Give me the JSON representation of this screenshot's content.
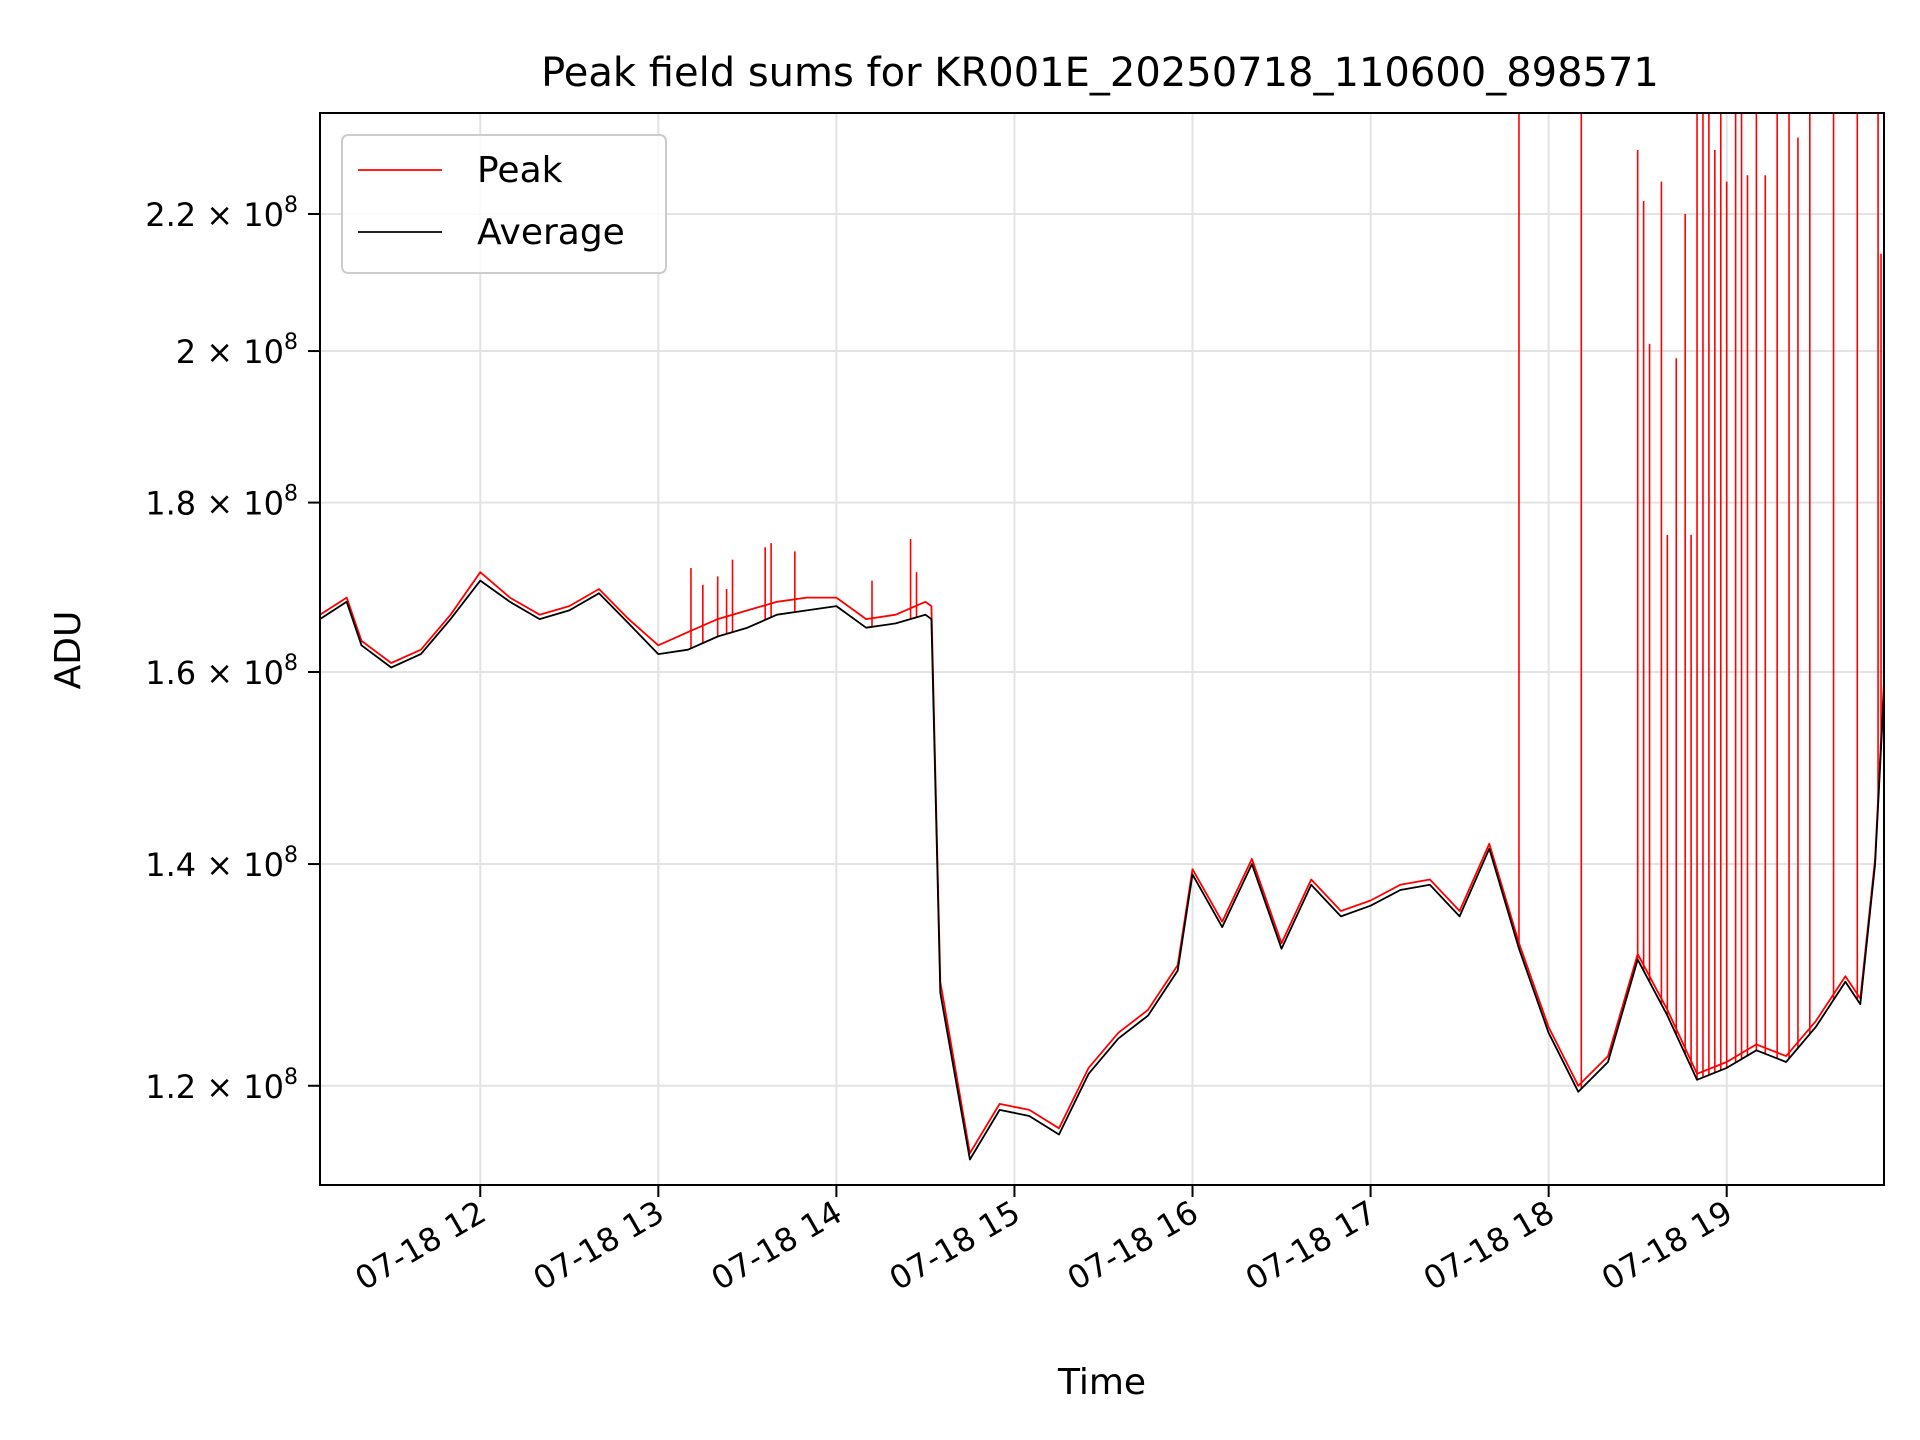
{
  "chart_data": {
    "type": "line",
    "title": "Peak field sums for KR001E_20250718_110600_898571",
    "xlabel": "Time",
    "ylabel": "ADU",
    "yscale": "log",
    "xlim": [
      "2025-07-18 11:06",
      "2025-07-18 19:53"
    ],
    "ylim": [
      112000000,
      236000000
    ],
    "grid": true,
    "legend": {
      "position": "top-left",
      "entries": [
        {
          "label": "Peak",
          "color": "#ff0000"
        },
        {
          "label": "Average",
          "color": "#000000"
        }
      ]
    },
    "x_ticks": [
      {
        "label": "07-18 12",
        "value": "2025-07-18 12:00"
      },
      {
        "label": "07-18 13",
        "value": "2025-07-18 13:00"
      },
      {
        "label": "07-18 14",
        "value": "2025-07-18 14:00"
      },
      {
        "label": "07-18 15",
        "value": "2025-07-18 15:00"
      },
      {
        "label": "07-18 16",
        "value": "2025-07-18 16:00"
      },
      {
        "label": "07-18 17",
        "value": "2025-07-18 17:00"
      },
      {
        "label": "07-18 18",
        "value": "2025-07-18 18:00"
      },
      {
        "label": "07-18 19",
        "value": "2025-07-18 19:00"
      }
    ],
    "y_ticks": [
      {
        "mantissa": "1.2",
        "exponent": "8",
        "value": 120000000
      },
      {
        "mantissa": "1.4",
        "exponent": "8",
        "value": 140000000
      },
      {
        "mantissa": "1.6",
        "exponent": "8",
        "value": 160000000
      },
      {
        "mantissa": "1.8",
        "exponent": "8",
        "value": 180000000
      },
      {
        "mantissa": "2",
        "exponent": "8",
        "value": 200000000
      },
      {
        "mantissa": "2.2",
        "exponent": "8",
        "value": 220000000
      }
    ],
    "series": [
      {
        "name": "Average",
        "color": "#000000",
        "x": [
          "2025-07-18 11:06",
          "2025-07-18 11:15",
          "2025-07-18 11:20",
          "2025-07-18 11:30",
          "2025-07-18 11:40",
          "2025-07-18 11:50",
          "2025-07-18 12:00",
          "2025-07-18 12:10",
          "2025-07-18 12:20",
          "2025-07-18 12:30",
          "2025-07-18 12:40",
          "2025-07-18 12:50",
          "2025-07-18 13:00",
          "2025-07-18 13:10",
          "2025-07-18 13:20",
          "2025-07-18 13:30",
          "2025-07-18 13:40",
          "2025-07-18 13:50",
          "2025-07-18 14:00",
          "2025-07-18 14:10",
          "2025-07-18 14:20",
          "2025-07-18 14:30",
          "2025-07-18 14:32",
          "2025-07-18 14:35",
          "2025-07-18 14:45",
          "2025-07-18 14:55",
          "2025-07-18 15:05",
          "2025-07-18 15:15",
          "2025-07-18 15:25",
          "2025-07-18 15:35",
          "2025-07-18 15:45",
          "2025-07-18 15:55",
          "2025-07-18 16:00",
          "2025-07-18 16:10",
          "2025-07-18 16:20",
          "2025-07-18 16:30",
          "2025-07-18 16:40",
          "2025-07-18 16:50",
          "2025-07-18 17:00",
          "2025-07-18 17:10",
          "2025-07-18 17:20",
          "2025-07-18 17:30",
          "2025-07-18 17:40",
          "2025-07-18 17:50",
          "2025-07-18 18:00",
          "2025-07-18 18:10",
          "2025-07-18 18:20",
          "2025-07-18 18:30",
          "2025-07-18 18:40",
          "2025-07-18 18:50",
          "2025-07-18 19:00",
          "2025-07-18 19:10",
          "2025-07-18 19:20",
          "2025-07-18 19:30",
          "2025-07-18 19:40",
          "2025-07-18 19:45",
          "2025-07-18 19:50",
          "2025-07-18 19:53"
        ],
        "values": [
          166000000,
          168000000,
          163000000,
          160500000,
          162000000,
          166000000,
          170500000,
          168000000,
          166000000,
          167000000,
          169000000,
          165500000,
          162000000,
          162500000,
          164000000,
          165000000,
          166500000,
          167000000,
          167500000,
          165000000,
          165500000,
          166500000,
          166000000,
          128000000,
          114000000,
          118000000,
          117500000,
          116000000,
          121000000,
          124000000,
          126000000,
          130000000,
          139000000,
          134000000,
          140000000,
          132000000,
          138000000,
          135000000,
          136000000,
          137500000,
          138000000,
          135000000,
          141500000,
          132000000,
          124500000,
          119500000,
          122000000,
          131000000,
          126000000,
          120500000,
          121500000,
          123000000,
          122000000,
          125000000,
          129000000,
          127000000,
          140000000,
          158000000
        ]
      },
      {
        "name": "Peak",
        "color": "#ff0000",
        "x": [
          "2025-07-18 11:06",
          "2025-07-18 11:15",
          "2025-07-18 11:20",
          "2025-07-18 11:30",
          "2025-07-18 11:40",
          "2025-07-18 11:50",
          "2025-07-18 12:00",
          "2025-07-18 12:10",
          "2025-07-18 12:20",
          "2025-07-18 12:30",
          "2025-07-18 12:40",
          "2025-07-18 12:50",
          "2025-07-18 13:00",
          "2025-07-18 13:10",
          "2025-07-18 13:20",
          "2025-07-18 13:30",
          "2025-07-18 13:40",
          "2025-07-18 13:50",
          "2025-07-18 14:00",
          "2025-07-18 14:10",
          "2025-07-18 14:20",
          "2025-07-18 14:30",
          "2025-07-18 14:32",
          "2025-07-18 14:35",
          "2025-07-18 14:45",
          "2025-07-18 14:55",
          "2025-07-18 15:05",
          "2025-07-18 15:15",
          "2025-07-18 15:25",
          "2025-07-18 15:35",
          "2025-07-18 15:45",
          "2025-07-18 15:55",
          "2025-07-18 16:00",
          "2025-07-18 16:10",
          "2025-07-18 16:20",
          "2025-07-18 16:30",
          "2025-07-18 16:40",
          "2025-07-18 16:50",
          "2025-07-18 17:00",
          "2025-07-18 17:10",
          "2025-07-18 17:20",
          "2025-07-18 17:30",
          "2025-07-18 17:40",
          "2025-07-18 17:50",
          "2025-07-18 18:00",
          "2025-07-18 18:10",
          "2025-07-18 18:20",
          "2025-07-18 18:30",
          "2025-07-18 18:40",
          "2025-07-18 18:50",
          "2025-07-18 19:00",
          "2025-07-18 19:10",
          "2025-07-18 19:20",
          "2025-07-18 19:30",
          "2025-07-18 19:40",
          "2025-07-18 19:45",
          "2025-07-18 19:50",
          "2025-07-18 19:53"
        ],
        "values": [
          166500000,
          168500000,
          163500000,
          161000000,
          162500000,
          166500000,
          171500000,
          168500000,
          166500000,
          167500000,
          169500000,
          166000000,
          163000000,
          164500000,
          166000000,
          167000000,
          168000000,
          168500000,
          168500000,
          166000000,
          166500000,
          168000000,
          167500000,
          129000000,
          114500000,
          118500000,
          118000000,
          116500000,
          121500000,
          124500000,
          126500000,
          130500000,
          139500000,
          134500000,
          140500000,
          132500000,
          138500000,
          135500000,
          136500000,
          138000000,
          138500000,
          135500000,
          142000000,
          132500000,
          125000000,
          120000000,
          122500000,
          131500000,
          126500000,
          121000000,
          122000000,
          123500000,
          122500000,
          125500000,
          129500000,
          127500000,
          140500000,
          159000000
        ]
      }
    ],
    "peak_spikes": [
      {
        "x": "2025-07-18 13:11",
        "value": 172000000
      },
      {
        "x": "2025-07-18 13:15",
        "value": 170000000
      },
      {
        "x": "2025-07-18 13:20",
        "value": 171000000
      },
      {
        "x": "2025-07-18 13:23",
        "value": 169500000
      },
      {
        "x": "2025-07-18 13:25",
        "value": 173000000
      },
      {
        "x": "2025-07-18 13:36",
        "value": 174500000
      },
      {
        "x": "2025-07-18 13:38",
        "value": 175000000
      },
      {
        "x": "2025-07-18 13:46",
        "value": 174000000
      },
      {
        "x": "2025-07-18 14:12",
        "value": 170500000
      },
      {
        "x": "2025-07-18 14:25",
        "value": 175500000
      },
      {
        "x": "2025-07-18 14:27",
        "value": 171500000
      },
      {
        "x": "2025-07-18 17:50",
        "value": 236000000
      },
      {
        "x": "2025-07-18 18:11",
        "value": 236000000
      },
      {
        "x": "2025-07-18 18:30",
        "value": 230000000
      },
      {
        "x": "2025-07-18 18:32",
        "value": 222000000
      },
      {
        "x": "2025-07-18 18:34",
        "value": 201000000
      },
      {
        "x": "2025-07-18 18:38",
        "value": 225000000
      },
      {
        "x": "2025-07-18 18:40",
        "value": 176000000
      },
      {
        "x": "2025-07-18 18:43",
        "value": 199000000
      },
      {
        "x": "2025-07-18 18:46",
        "value": 220000000
      },
      {
        "x": "2025-07-18 18:48",
        "value": 176000000
      },
      {
        "x": "2025-07-18 18:50",
        "value": 236000000
      },
      {
        "x": "2025-07-18 18:52",
        "value": 236000000
      },
      {
        "x": "2025-07-18 18:54",
        "value": 236000000
      },
      {
        "x": "2025-07-18 18:56",
        "value": 230000000
      },
      {
        "x": "2025-07-18 18:58",
        "value": 236000000
      },
      {
        "x": "2025-07-18 19:00",
        "value": 225000000
      },
      {
        "x": "2025-07-18 19:03",
        "value": 236000000
      },
      {
        "x": "2025-07-18 19:05",
        "value": 236000000
      },
      {
        "x": "2025-07-18 19:07",
        "value": 226000000
      },
      {
        "x": "2025-07-18 19:10",
        "value": 236000000
      },
      {
        "x": "2025-07-18 19:13",
        "value": 226000000
      },
      {
        "x": "2025-07-18 19:17",
        "value": 236000000
      },
      {
        "x": "2025-07-18 19:21",
        "value": 236000000
      },
      {
        "x": "2025-07-18 19:24",
        "value": 232000000
      },
      {
        "x": "2025-07-18 19:28",
        "value": 236000000
      },
      {
        "x": "2025-07-18 19:36",
        "value": 236000000
      },
      {
        "x": "2025-07-18 19:44",
        "value": 236000000
      },
      {
        "x": "2025-07-18 19:51",
        "value": 236000000
      },
      {
        "x": "2025-07-18 19:52",
        "value": 214000000
      }
    ]
  }
}
